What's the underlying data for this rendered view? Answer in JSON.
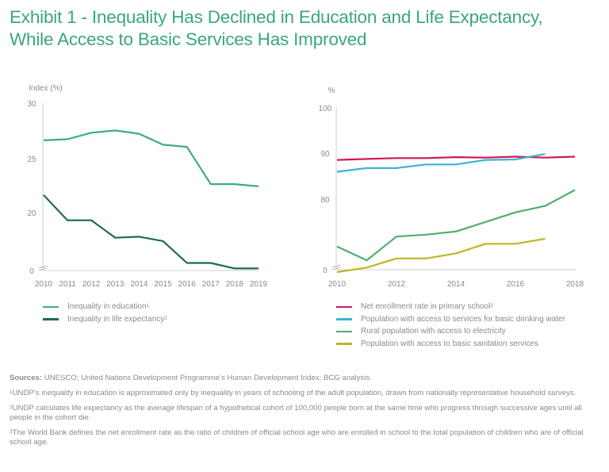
{
  "title": {
    "line1": "Exhibit 1 - Inequality Has Declined in Education and Life Expectancy,",
    "line2": "While Access to Basic Services Has Improved"
  },
  "colors": {
    "title": "#3aa584",
    "education": "#3fa98a",
    "life_expectancy": "#1b6e4c",
    "net_enrollment": "#d0175a",
    "drinking_water": "#3db4d1",
    "electricity": "#4fae6d",
    "sanitation": "#bdb723",
    "axis": "#cfcfcf",
    "text": "#8a8a8a"
  },
  "chart_data": [
    {
      "type": "line",
      "title": "",
      "ylabel": "Index (%)",
      "xlabel": "",
      "x": [
        2010,
        2011,
        2012,
        2013,
        2014,
        2015,
        2016,
        2017,
        2018,
        2019
      ],
      "x_tick_labels": [
        "2010",
        "2011",
        "2012",
        "2013",
        "2014",
        "2015",
        "2016",
        "2017",
        "2018",
        "2019"
      ],
      "y_tick_labels": [
        "0",
        "20",
        "25",
        "30"
      ],
      "y_ticks": [
        0,
        20,
        25,
        30
      ],
      "axis_break": true,
      "ylim": [
        0,
        30
      ],
      "grid": false,
      "legend_position": "bottom",
      "series": [
        {
          "name": "Inequality in education",
          "footnote": "1",
          "color_key": "education",
          "values": [
            26.6,
            26.7,
            27.3,
            27.5,
            27.2,
            26.2,
            26.0,
            22.6,
            22.6,
            22.4
          ]
        },
        {
          "name": "Inequality in life expectancy",
          "footnote": "2",
          "color_key": "life_expectancy",
          "values": [
            21.6,
            19.3,
            19.3,
            17.7,
            17.8,
            17.4,
            15.4,
            15.4,
            14.9,
            14.9
          ]
        }
      ]
    },
    {
      "type": "line",
      "title": "",
      "ylabel": "%",
      "xlabel": "",
      "x": [
        2010,
        2011,
        2012,
        2013,
        2014,
        2015,
        2016,
        2017,
        2018
      ],
      "x_tick_labels": [
        "2010",
        "2012",
        "2014",
        "2016",
        "2018"
      ],
      "x_tick_values": [
        2010,
        2012,
        2014,
        2016,
        2018
      ],
      "y_tick_labels": [
        "0",
        "80",
        "90",
        "100"
      ],
      "y_ticks": [
        0,
        80,
        90,
        100
      ],
      "axis_break": true,
      "ylim": [
        0,
        100
      ],
      "grid": false,
      "legend_position": "bottom",
      "series": [
        {
          "name": "Net enrollment rate in primary school",
          "footnote": "3",
          "color_key": "net_enrollment",
          "values": [
            88.6,
            88.8,
            89.0,
            89.0,
            89.2,
            89.1,
            89.3,
            89.1,
            89.3
          ]
        },
        {
          "name": "Population with access to services for basic drinking water",
          "footnote": "",
          "color_key": "drinking_water",
          "values": [
            86.0,
            86.8,
            86.8,
            87.6,
            87.6,
            88.6,
            88.7,
            89.9,
            null
          ]
        },
        {
          "name": "Rural population with access to electricity",
          "footnote": "",
          "color_key": "electricity",
          "values": [
            69.6,
            66.6,
            71.8,
            72.2,
            72.9,
            75.0,
            77.1,
            78.5,
            82.0
          ]
        },
        {
          "name": "Population with access to basic sanitation services",
          "footnote": "",
          "color_key": "sanitation",
          "values": [
            64.0,
            65.0,
            67.0,
            67.0,
            68.1,
            70.2,
            70.2,
            71.3,
            null
          ]
        }
      ]
    }
  ],
  "notes": {
    "sources_label": "Sources:",
    "sources_text": " UNESCO; United Nations Development Programme’s Human Development Index; BCG analysis.",
    "footnotes": [
      {
        "mark": "1",
        "text": "UNDP’s inequality in education is approximated only by inequality in years of schooling of the adult population, drawn from nationally representative household surveys."
      },
      {
        "mark": "2",
        "text": "UNDP calculates life expectancy as the average lifespan of a hypothetical cohort of 100,000 people born at the same time who progress through successive ages until all people in the cohort die."
      },
      {
        "mark": "3",
        "text": "The World Bank defines the net enrollment rate as the ratio of children of official school age who are enrolled in school to the total population of children who are of official school age."
      }
    ]
  }
}
